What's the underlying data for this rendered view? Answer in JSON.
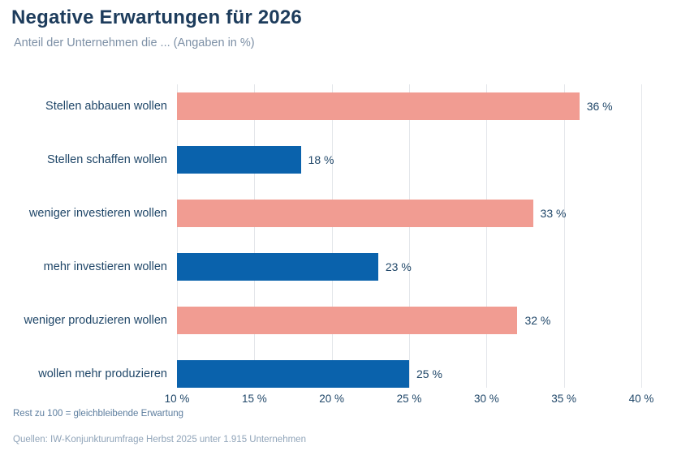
{
  "header": {
    "title": "Negative Erwartungen für 2026",
    "subtitle": "Anteil der Unternehmen die ... (Angaben in %)"
  },
  "chart_data": {
    "type": "bar",
    "orientation": "horizontal",
    "title": "Negative Erwartungen für 2026",
    "subtitle": "Anteil der Unternehmen die ... (Angaben in %)",
    "categories": [
      "Stellen abbauen wollen",
      "Stellen schaffen wollen",
      "weniger investieren wollen",
      "mehr investieren wollen",
      "weniger produzieren wollen",
      "wollen mehr produzieren"
    ],
    "values": [
      36,
      18,
      33,
      23,
      32,
      25
    ],
    "value_labels": [
      "36 %",
      "18 %",
      "33 %",
      "23 %",
      "32 %",
      "25 %"
    ],
    "bar_colors": [
      "#f19c92",
      "#0a62ac",
      "#f19c92",
      "#0a62ac",
      "#f19c92",
      "#0a62ac"
    ],
    "xlim": [
      10,
      40
    ],
    "x_ticks": [
      10,
      15,
      20,
      25,
      30,
      35,
      40
    ],
    "x_tick_labels": [
      "10 %",
      "15 %",
      "20 %",
      "25 %",
      "30 %",
      "35 %",
      "40 %"
    ],
    "grid": "vertical-on",
    "legend": "none"
  },
  "colors": {
    "negative_bar": "#f19c92",
    "positive_bar": "#0a62ac",
    "title_text": "#1d3c5c",
    "subtitle_text": "#7d90a6",
    "label_text": "#1f4668",
    "note_text": "#5c7d9e",
    "source_text": "#90a4b9",
    "gridline": "#e3e6ea",
    "background": "#ffffff"
  },
  "footer": {
    "note": "Rest zu 100 = gleichbleibende Erwartung",
    "source": "Quellen: IW-Konjunkturumfrage Herbst 2025 unter 1.915 Unternehmen"
  }
}
